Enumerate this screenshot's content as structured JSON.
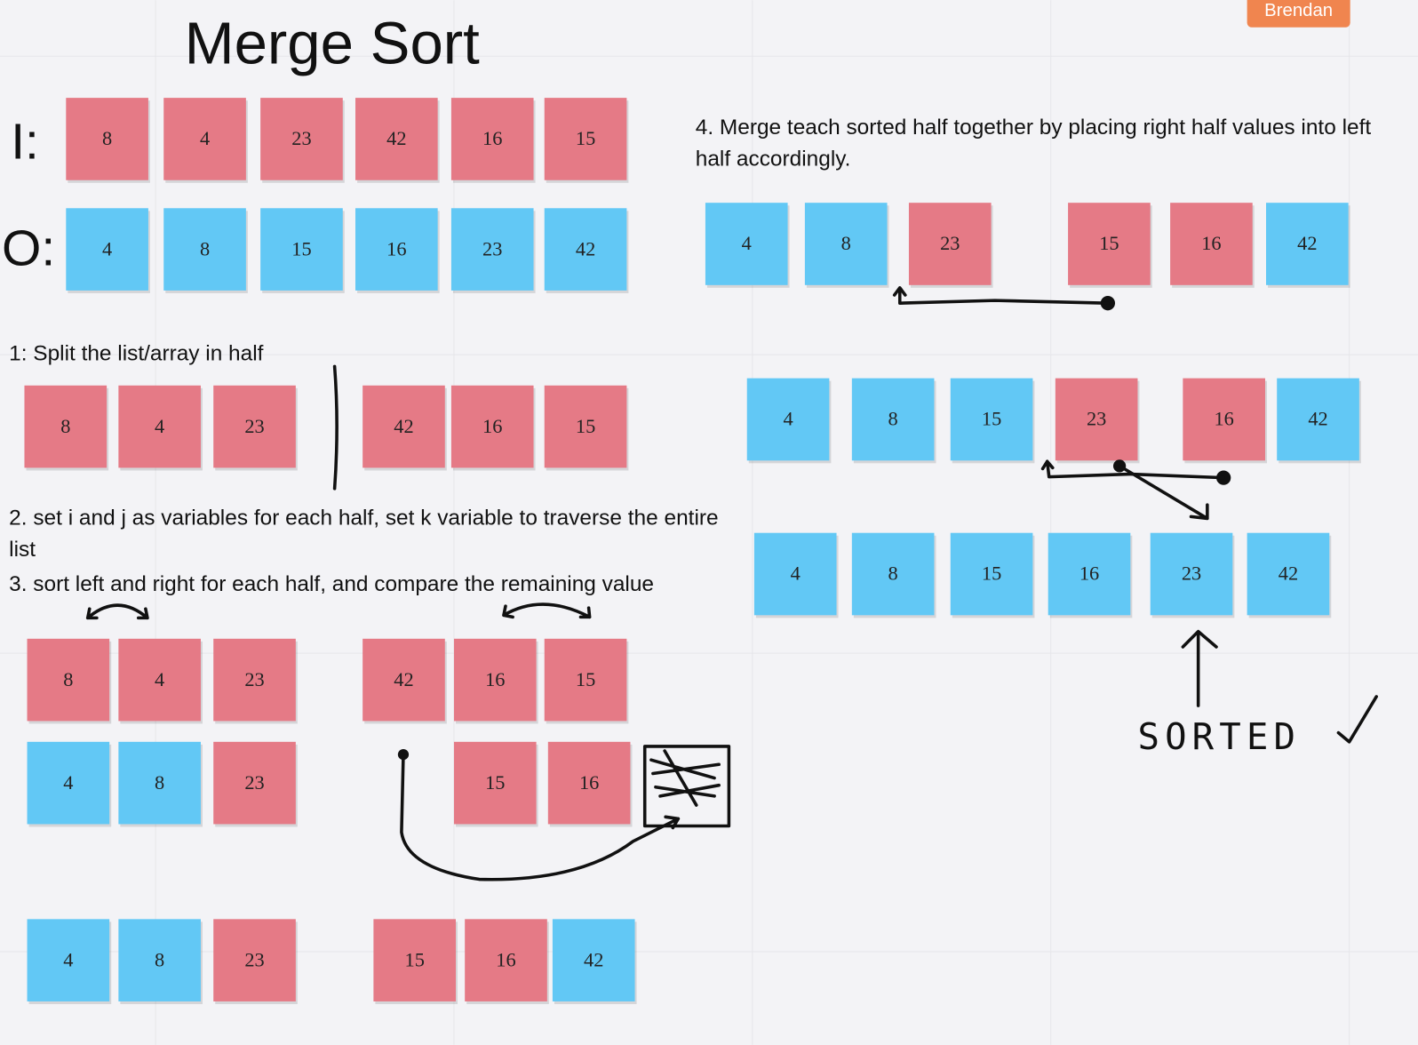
{
  "header": {
    "title": "Merge Sort",
    "user": "Brendan"
  },
  "labels": {
    "input": "I:",
    "output": "O:"
  },
  "steps": [
    "1: Split the list/array in half",
    "2. set i and j as variables for each half, set k variable to traverse the entire list",
    "3. sort left and right for each half, and compare the remaining value",
    "4. Merge teach sorted half together by  placing right half values into left half accordingly."
  ],
  "annotation": "SORTED",
  "rows": [
    {
      "notes": [
        {
          "text": "8",
          "color": "#e57a86"
        },
        {
          "text": "4",
          "color": "#e57a86"
        },
        {
          "text": "23",
          "color": "#e57a86"
        },
        {
          "text": "42",
          "color": "#e57a86"
        },
        {
          "text": "16",
          "color": "#e57a86"
        },
        {
          "text": "15",
          "color": "#e57a86"
        }
      ]
    },
    {
      "notes": [
        {
          "text": "4",
          "color": "#62c8f5"
        },
        {
          "text": "8",
          "color": "#62c8f5"
        },
        {
          "text": "15",
          "color": "#62c8f5"
        },
        {
          "text": "16",
          "color": "#62c8f5"
        },
        {
          "text": "23",
          "color": "#62c8f5"
        },
        {
          "text": "42",
          "color": "#62c8f5"
        }
      ]
    },
    {
      "notes": [
        {
          "text": "8",
          "color": "#e57a86"
        },
        {
          "text": "4",
          "color": "#e57a86"
        },
        {
          "text": "23",
          "color": "#e57a86"
        },
        {
          "text": "42",
          "color": "#e57a86"
        },
        {
          "text": "16",
          "color": "#e57a86"
        },
        {
          "text": "15",
          "color": "#e57a86"
        }
      ]
    },
    {
      "notes": [
        {
          "text": "8",
          "color": "#e57a86"
        },
        {
          "text": "4",
          "color": "#e57a86"
        },
        {
          "text": "23",
          "color": "#e57a86"
        },
        {
          "text": "42",
          "color": "#e57a86"
        },
        {
          "text": "16",
          "color": "#e57a86"
        },
        {
          "text": "15",
          "color": "#e57a86"
        }
      ]
    },
    {
      "notes": [
        {
          "text": "4",
          "color": "#62c8f5"
        },
        {
          "text": "8",
          "color": "#62c8f5"
        },
        {
          "text": "23",
          "color": "#e57a86"
        },
        {
          "text": "15",
          "color": "#e57a86"
        },
        {
          "text": "16",
          "color": "#e57a86"
        }
      ]
    },
    {
      "notes": [
        {
          "text": "4",
          "color": "#62c8f5"
        },
        {
          "text": "8",
          "color": "#62c8f5"
        },
        {
          "text": "23",
          "color": "#e57a86"
        },
        {
          "text": "15",
          "color": "#e57a86"
        },
        {
          "text": "16",
          "color": "#e57a86"
        },
        {
          "text": "42",
          "color": "#62c8f5"
        }
      ]
    },
    {
      "notes": [
        {
          "text": "4",
          "color": "#62c8f5"
        },
        {
          "text": "8",
          "color": "#62c8f5"
        },
        {
          "text": "23",
          "color": "#e57a86"
        },
        {
          "text": "15",
          "color": "#e57a86"
        },
        {
          "text": "16",
          "color": "#e57a86"
        },
        {
          "text": "42",
          "color": "#62c8f5"
        }
      ]
    },
    {
      "notes": [
        {
          "text": "4",
          "color": "#62c8f5"
        },
        {
          "text": "8",
          "color": "#62c8f5"
        },
        {
          "text": "15",
          "color": "#62c8f5"
        },
        {
          "text": "23",
          "color": "#e57a86"
        },
        {
          "text": "16",
          "color": "#e57a86"
        },
        {
          "text": "42",
          "color": "#62c8f5"
        }
      ]
    },
    {
      "notes": [
        {
          "text": "4",
          "color": "#62c8f5"
        },
        {
          "text": "8",
          "color": "#62c8f5"
        },
        {
          "text": "15",
          "color": "#62c8f5"
        },
        {
          "text": "16",
          "color": "#62c8f5"
        },
        {
          "text": "23",
          "color": "#62c8f5"
        },
        {
          "text": "42",
          "color": "#62c8f5"
        }
      ]
    }
  ]
}
